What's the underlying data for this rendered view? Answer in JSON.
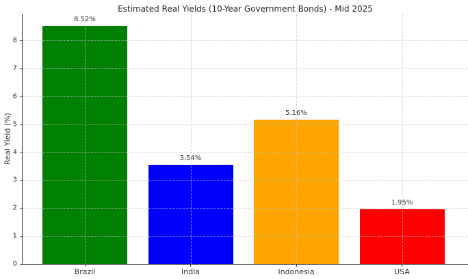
{
  "chart_data": {
    "type": "bar",
    "title": "Estimated Real Yields (10-Year Government Bonds) - Mid 2025",
    "xlabel": "",
    "ylabel": "Real Yield (%)",
    "categories": [
      "Brazil",
      "India",
      "Indonesia",
      "USA"
    ],
    "values": [
      8.52,
      3.54,
      5.16,
      1.95
    ],
    "bar_labels": [
      "8.52%",
      "3.54%",
      "5.16%",
      "1.95%"
    ],
    "bar_colors": [
      "#008000",
      "#0000ff",
      "#ffa500",
      "#ff0000"
    ],
    "yticks": [
      0,
      1,
      2,
      3,
      4,
      5,
      6,
      7,
      8
    ],
    "ylim": [
      0,
      8.93
    ],
    "grid": {
      "horizontal": true,
      "vertical": true,
      "style": "dashed",
      "color": "#c3c3c3"
    },
    "legend": "none",
    "axis_color": "#333333",
    "text_color": "#333333",
    "background_color": "#ffffff"
  }
}
